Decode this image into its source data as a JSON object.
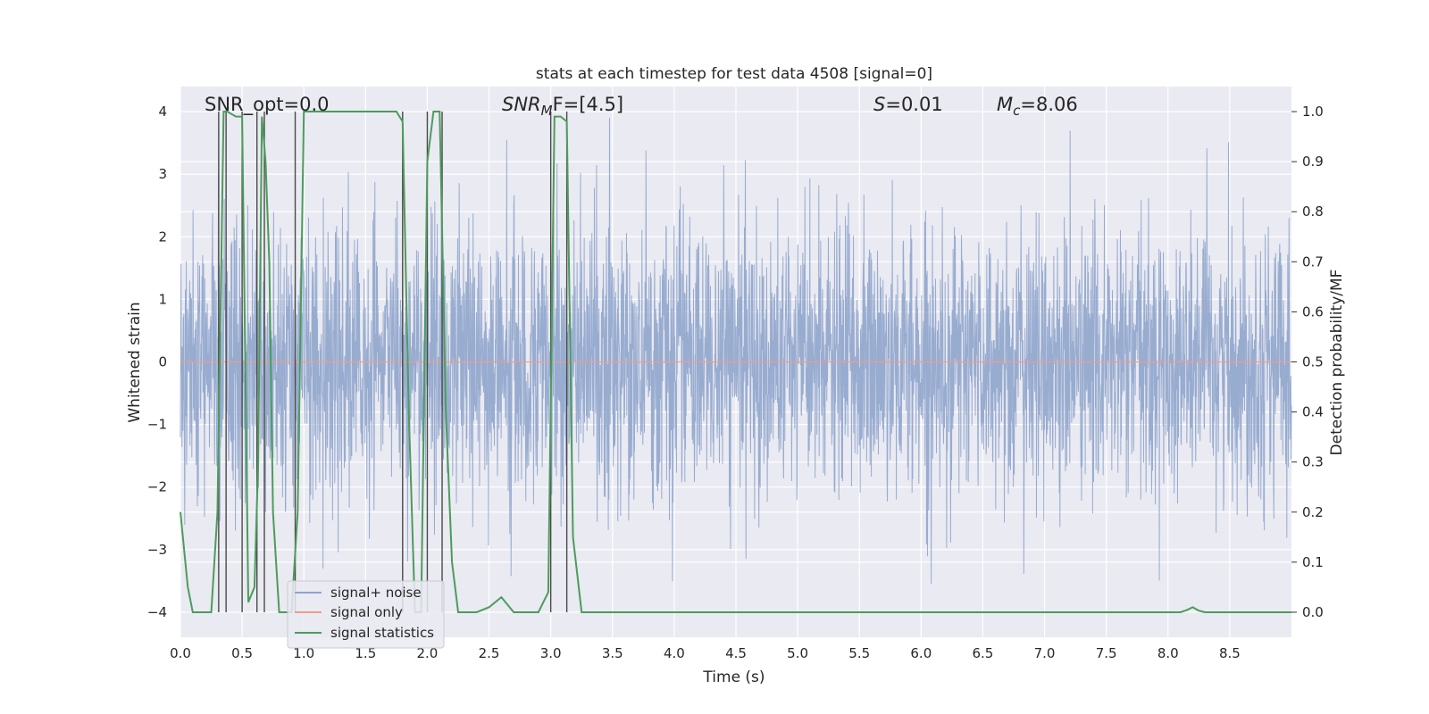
{
  "chart_data": {
    "type": "line",
    "title": "stats at each timestep for test data 4508 [signal=0]",
    "xlabel": "Time (s)",
    "ylabel_left": "Whitened strain",
    "ylabel_right": "Detection probability/MF",
    "xlim": [
      0.0,
      9.0
    ],
    "ylim_left": [
      -4.4,
      4.4
    ],
    "ylim_right": [
      -0.05,
      1.05
    ],
    "x_ticks": [
      "0.0",
      "0.5",
      "1.0",
      "1.5",
      "2.0",
      "2.5",
      "3.0",
      "3.5",
      "4.0",
      "4.5",
      "5.0",
      "5.5",
      "6.0",
      "6.5",
      "7.0",
      "7.5",
      "8.0",
      "8.5"
    ],
    "y_left_ticks": [
      "−4",
      "−3",
      "−2",
      "−1",
      "0",
      "1",
      "2",
      "3",
      "4"
    ],
    "y_right_ticks": [
      "0.0",
      "0.1",
      "0.2",
      "0.3",
      "0.4",
      "0.5",
      "0.6",
      "0.7",
      "0.8",
      "0.9",
      "1.0"
    ],
    "grid": true,
    "legend_position": "lower-left",
    "annotations": {
      "snr_opt": "SNR_opt=0.0",
      "snr_mf_prefix": "SNR",
      "snr_mf_sub": "M",
      "snr_mf_suffix": "F=[4.5]",
      "s_prefix": "S",
      "s_suffix": "=0.01",
      "mc_prefix": "M",
      "mc_sub": "c",
      "mc_suffix": "=8.06"
    },
    "series": [
      {
        "name": "signal+ noise",
        "color": "#8fa5cc",
        "description": "whitened strain noise, amplitude roughly within ±2.5 with spikes to ±4"
      },
      {
        "name": "signal only",
        "color": "#e8a08a",
        "values_constant": 0
      },
      {
        "name": "signal statistics",
        "color": "#4c9c5c",
        "x": [
          0.0,
          0.06,
          0.1,
          0.15,
          0.25,
          0.3,
          0.35,
          0.38,
          0.45,
          0.5,
          0.55,
          0.6,
          0.63,
          0.66,
          0.69,
          0.72,
          0.75,
          0.8,
          0.85,
          0.9,
          0.95,
          1.0,
          1.05,
          1.1,
          1.5,
          1.75,
          1.8,
          1.85,
          1.9,
          1.95,
          2.0,
          2.05,
          2.1,
          2.15,
          2.2,
          2.25,
          2.3,
          2.4,
          2.5,
          2.6,
          2.7,
          2.8,
          2.9,
          2.98,
          3.03,
          3.08,
          3.13,
          3.18,
          3.25,
          3.3,
          3.5,
          4.0,
          5.0,
          6.0,
          7.0,
          8.0,
          8.1,
          8.15,
          8.2,
          8.25,
          8.3,
          8.5,
          9.0
        ],
        "values": [
          0.2,
          0.05,
          0.0,
          0.0,
          0.0,
          0.2,
          1.0,
          1.0,
          0.99,
          0.99,
          0.02,
          0.05,
          0.3,
          0.99,
          0.9,
          0.7,
          0.2,
          0.0,
          0.0,
          0.0,
          0.2,
          1.0,
          1.0,
          1.0,
          1.0,
          1.0,
          0.98,
          0.4,
          0.0,
          0.0,
          0.9,
          1.0,
          1.0,
          0.4,
          0.1,
          0.0,
          0.0,
          0.0,
          0.01,
          0.03,
          0.0,
          0.0,
          0.0,
          0.04,
          0.99,
          0.99,
          0.98,
          0.15,
          0.0,
          0.0,
          0.0,
          0.0,
          0.0,
          0.0,
          0.0,
          0.0,
          0.0,
          0.004,
          0.01,
          0.003,
          0.0,
          0.0,
          0.0
        ]
      }
    ],
    "vlines_x": [
      0.31,
      0.37,
      0.5,
      0.62,
      0.68,
      0.93,
      1.8,
      2.0,
      2.12,
      3.0,
      3.13
    ]
  }
}
